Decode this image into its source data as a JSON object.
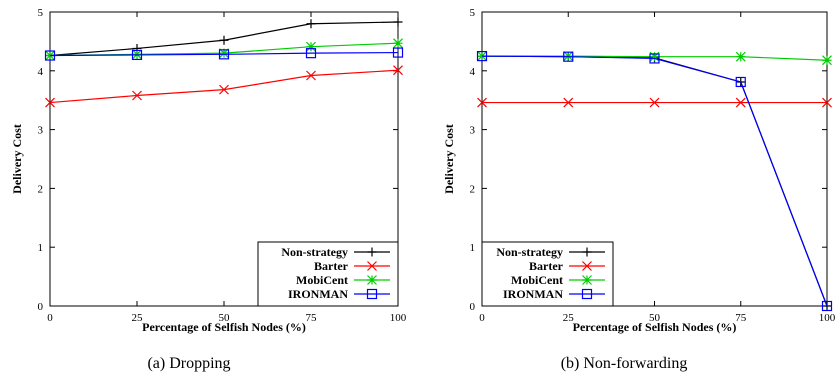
{
  "chart_data": [
    {
      "type": "line",
      "caption": "(a) Dropping",
      "xlabel": "Percentage of Selfish Nodes (%)",
      "ylabel": "Delivery Cost",
      "x": [
        0,
        25,
        50,
        75,
        100
      ],
      "xticks": [
        "0",
        "25",
        "50",
        "75",
        "100"
      ],
      "yticks": [
        "0",
        "1",
        "2",
        "3",
        "4",
        "5"
      ],
      "xlim": [
        0,
        100
      ],
      "ylim": [
        0,
        5
      ],
      "grid": false,
      "legend_position": "bottom-right",
      "series": [
        {
          "name": "Non-strategy",
          "color": "#000000",
          "marker": "plus",
          "values": [
            4.26,
            4.38,
            4.52,
            4.8,
            4.83
          ]
        },
        {
          "name": "Barter",
          "color": "#ff0000",
          "marker": "cross",
          "values": [
            3.46,
            3.58,
            3.68,
            3.92,
            4.01
          ]
        },
        {
          "name": "MobiCent",
          "color": "#00cc00",
          "marker": "star",
          "values": [
            4.26,
            4.28,
            4.3,
            4.41,
            4.47
          ]
        },
        {
          "name": "IRONMAN",
          "color": "#0000ff",
          "marker": "square",
          "values": [
            4.26,
            4.27,
            4.28,
            4.3,
            4.31
          ]
        }
      ]
    },
    {
      "type": "line",
      "caption": "(b) Non-forwarding",
      "xlabel": "Percentage of Selfish Nodes (%)",
      "ylabel": "Delivery Cost",
      "x": [
        0,
        25,
        50,
        75,
        100
      ],
      "xticks": [
        "0",
        "25",
        "50",
        "75",
        "100"
      ],
      "yticks": [
        "0",
        "1",
        "2",
        "3",
        "4",
        "5"
      ],
      "xlim": [
        0,
        100
      ],
      "ylim": [
        0,
        5
      ],
      "grid": false,
      "legend_position": "bottom-left",
      "series": [
        {
          "name": "Non-strategy",
          "color": "#000000",
          "marker": "plus",
          "values": [
            4.25,
            4.24,
            4.22,
            3.81,
            0.0
          ]
        },
        {
          "name": "Barter",
          "color": "#ff0000",
          "marker": "cross",
          "values": [
            3.46,
            3.46,
            3.46,
            3.46,
            3.46
          ]
        },
        {
          "name": "MobiCent",
          "color": "#00cc00",
          "marker": "star",
          "values": [
            4.25,
            4.25,
            4.24,
            4.24,
            4.18
          ]
        },
        {
          "name": "IRONMAN",
          "color": "#0000ff",
          "marker": "square",
          "values": [
            4.25,
            4.24,
            4.21,
            3.81,
            0.0
          ]
        }
      ]
    }
  ]
}
